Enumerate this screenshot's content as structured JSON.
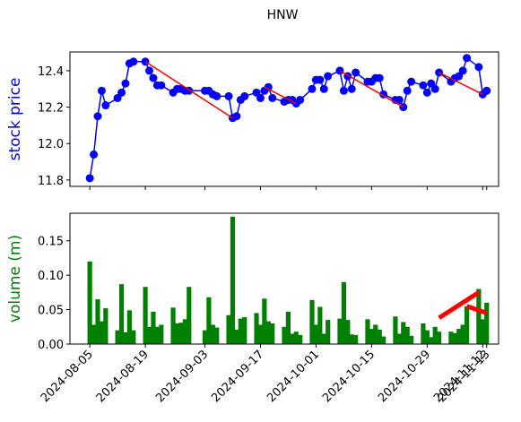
{
  "chart_data": [
    {
      "type": "line",
      "title": "HNW",
      "ylabel": "stock price",
      "ylabel_color": "blue",
      "color": "blue",
      "marker": "o",
      "x": [
        "2024-08-05",
        "2024-08-06",
        "2024-08-07",
        "2024-08-08",
        "2024-08-09",
        "2024-08-12",
        "2024-08-13",
        "2024-08-14",
        "2024-08-15",
        "2024-08-16",
        "2024-08-19",
        "2024-08-20",
        "2024-08-21",
        "2024-08-22",
        "2024-08-23",
        "2024-08-26",
        "2024-08-27",
        "2024-08-28",
        "2024-08-29",
        "2024-08-30",
        "2024-09-03",
        "2024-09-04",
        "2024-09-05",
        "2024-09-06",
        "2024-09-09",
        "2024-09-10",
        "2024-09-11",
        "2024-09-12",
        "2024-09-13",
        "2024-09-16",
        "2024-09-17",
        "2024-09-18",
        "2024-09-19",
        "2024-09-20",
        "2024-09-23",
        "2024-09-24",
        "2024-09-25",
        "2024-09-26",
        "2024-09-27",
        "2024-09-30",
        "2024-10-01",
        "2024-10-02",
        "2024-10-03",
        "2024-10-04",
        "2024-10-07",
        "2024-10-08",
        "2024-10-09",
        "2024-10-10",
        "2024-10-11",
        "2024-10-14",
        "2024-10-15",
        "2024-10-16",
        "2024-10-17",
        "2024-10-18",
        "2024-10-21",
        "2024-10-22",
        "2024-10-23",
        "2024-10-24",
        "2024-10-25",
        "2024-10-28",
        "2024-10-29",
        "2024-10-30",
        "2024-10-31",
        "2024-11-01",
        "2024-11-04",
        "2024-11-05",
        "2024-11-06",
        "2024-11-07",
        "2024-11-08",
        "2024-11-11",
        "2024-11-12",
        "2024-11-13"
      ],
      "values": [
        11.81,
        11.94,
        12.15,
        12.29,
        12.21,
        12.25,
        12.28,
        12.33,
        12.44,
        12.45,
        12.45,
        12.4,
        12.36,
        12.32,
        12.32,
        12.28,
        12.3,
        12.3,
        12.29,
        12.29,
        12.29,
        12.29,
        12.27,
        12.26,
        12.26,
        12.14,
        12.15,
        12.24,
        12.26,
        12.28,
        12.25,
        12.29,
        12.31,
        12.25,
        12.23,
        12.24,
        12.24,
        12.22,
        12.24,
        12.3,
        12.35,
        12.35,
        12.3,
        12.37,
        12.4,
        12.29,
        12.37,
        12.3,
        12.39,
        12.34,
        12.34,
        12.36,
        12.36,
        12.27,
        12.24,
        12.24,
        12.2,
        12.29,
        12.34,
        12.32,
        12.28,
        12.33,
        12.3,
        12.39,
        12.34,
        12.36,
        12.37,
        12.4,
        12.47,
        12.42,
        12.27,
        12.29
      ],
      "xlim": [
        "2024-07-31",
        "2024-11-16"
      ],
      "xticks": [
        "2024-08-05",
        "2024-08-19",
        "2024-09-03",
        "2024-09-17",
        "2024-10-01",
        "2024-10-15",
        "2024-10-29",
        "2024-11-12",
        "2024-11-13"
      ],
      "ylim": [
        11.765,
        12.503
      ],
      "yticks": [
        11.8,
        {
          "value": 12,
          "label": "12.0"
        },
        12.2,
        12.4
      ],
      "trend_lines": [
        {
          "x": [
            "2024-08-19",
            "2024-09-10"
          ],
          "y": [
            12.45,
            12.14
          ],
          "color": "red"
        },
        {
          "x": [
            "2024-09-18",
            "2024-09-26"
          ],
          "y": [
            12.31,
            12.22
          ],
          "color": "red"
        },
        {
          "x": [
            "2024-10-07",
            "2024-10-23"
          ],
          "y": [
            12.4,
            12.2
          ],
          "color": "red"
        },
        {
          "x": [
            "2024-11-01",
            "2024-11-12"
          ],
          "y": [
            12.39,
            12.27
          ],
          "color": "red"
        }
      ]
    },
    {
      "type": "bar",
      "ylabel": "volume (m)",
      "ylabel_color": "green",
      "color": "green",
      "x": [
        "2024-08-05",
        "2024-08-06",
        "2024-08-07",
        "2024-08-08",
        "2024-08-09",
        "2024-08-12",
        "2024-08-13",
        "2024-08-14",
        "2024-08-15",
        "2024-08-16",
        "2024-08-19",
        "2024-08-20",
        "2024-08-21",
        "2024-08-22",
        "2024-08-23",
        "2024-08-26",
        "2024-08-27",
        "2024-08-28",
        "2024-08-29",
        "2024-08-30",
        "2024-09-03",
        "2024-09-04",
        "2024-09-05",
        "2024-09-06",
        "2024-09-09",
        "2024-09-10",
        "2024-09-11",
        "2024-09-12",
        "2024-09-13",
        "2024-09-16",
        "2024-09-17",
        "2024-09-18",
        "2024-09-19",
        "2024-09-20",
        "2024-09-23",
        "2024-09-24",
        "2024-09-25",
        "2024-09-26",
        "2024-09-27",
        "2024-09-30",
        "2024-10-01",
        "2024-10-02",
        "2024-10-03",
        "2024-10-04",
        "2024-10-07",
        "2024-10-08",
        "2024-10-09",
        "2024-10-10",
        "2024-10-11",
        "2024-10-14",
        "2024-10-15",
        "2024-10-16",
        "2024-10-17",
        "2024-10-18",
        "2024-10-21",
        "2024-10-22",
        "2024-10-23",
        "2024-10-24",
        "2024-10-25",
        "2024-10-28",
        "2024-10-29",
        "2024-10-30",
        "2024-10-31",
        "2024-11-01",
        "2024-11-04",
        "2024-11-05",
        "2024-11-06",
        "2024-11-07",
        "2024-11-08",
        "2024-11-11",
        "2024-11-12",
        "2024-11-13"
      ],
      "values": [
        0.12,
        0.028,
        0.065,
        0.033,
        0.052,
        0.02,
        0.087,
        0.017,
        0.049,
        0.02,
        0.083,
        0.025,
        0.047,
        0.025,
        0.028,
        0.053,
        0.03,
        0.031,
        0.036,
        0.083,
        0.02,
        0.068,
        0.028,
        0.024,
        0.042,
        0.185,
        0.021,
        0.037,
        0.039,
        0.045,
        0.028,
        0.066,
        0.033,
        0.03,
        0.025,
        0.047,
        0.015,
        0.018,
        0.013,
        0.064,
        0.028,
        0.054,
        0.015,
        0.035,
        0.037,
        0.09,
        0.035,
        0.014,
        0.013,
        0.036,
        0.022,
        0.028,
        0.021,
        0.011,
        0.04,
        0.015,
        0.032,
        0.025,
        0.012,
        0.03,
        0.02,
        0.01,
        0.025,
        0.018,
        0.018,
        0.016,
        0.022,
        0.028,
        0.055,
        0.08,
        0.036,
        0.06
      ],
      "xlim": [
        "2024-07-31",
        "2024-11-16"
      ],
      "xticks": [
        "2024-08-05",
        "2024-08-19",
        "2024-09-03",
        "2024-09-17",
        "2024-10-01",
        "2024-10-15",
        "2024-10-29",
        "2024-11-12",
        "2024-11-13"
      ],
      "ylim": [
        0,
        0.19
      ],
      "yticks": [
        {
          "value": 0,
          "label": "0.00"
        },
        {
          "value": 0.05,
          "label": "0.05"
        },
        {
          "value": 0.1,
          "label": "0.10"
        },
        {
          "value": 0.15,
          "label": "0.15"
        }
      ],
      "trend_lines": [
        {
          "x": [
            "2024-11-01",
            "2024-11-11"
          ],
          "y": [
            0.038,
            0.075
          ],
          "color": "red"
        },
        {
          "x": [
            "2024-11-08",
            "2024-11-13"
          ],
          "y": [
            0.055,
            0.045
          ],
          "color": "red"
        }
      ]
    }
  ]
}
